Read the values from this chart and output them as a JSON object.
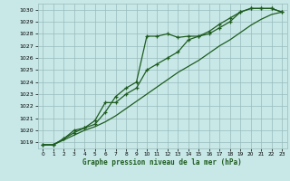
{
  "xlabel": "Graphe pression niveau de la mer (hPa)",
  "xlim": [
    -0.5,
    23.5
  ],
  "ylim": [
    1018.5,
    1030.5
  ],
  "yticks": [
    1019,
    1020,
    1021,
    1022,
    1023,
    1024,
    1025,
    1026,
    1027,
    1028,
    1029,
    1030
  ],
  "xticks": [
    0,
    1,
    2,
    3,
    4,
    5,
    6,
    7,
    8,
    9,
    10,
    11,
    12,
    13,
    14,
    15,
    16,
    17,
    18,
    19,
    20,
    21,
    22,
    23
  ],
  "bg_color": "#c8e8e8",
  "grid_color": "#99bbbb",
  "line_color": "#1e5c1e",
  "line1_x": [
    0,
    1,
    2,
    3,
    4,
    5,
    6,
    7,
    8,
    9,
    10,
    11,
    12,
    13,
    14,
    15,
    16,
    17,
    18,
    19,
    20,
    21,
    22,
    23
  ],
  "line1_y": [
    1018.8,
    1018.8,
    1019.3,
    1020.0,
    1020.2,
    1020.5,
    1021.5,
    1022.8,
    1023.5,
    1024.0,
    1027.8,
    1027.8,
    1028.0,
    1027.7,
    1027.8,
    1027.8,
    1028.0,
    1028.5,
    1029.0,
    1029.8,
    1030.1,
    1030.1,
    1030.1,
    1029.8
  ],
  "line2_x": [
    0,
    1,
    2,
    3,
    4,
    5,
    6,
    7,
    8,
    9,
    10,
    11,
    12,
    13,
    14,
    15,
    16,
    17,
    18,
    19,
    20,
    21,
    22,
    23
  ],
  "line2_y": [
    1018.8,
    1018.8,
    1019.3,
    1019.8,
    1020.2,
    1020.8,
    1022.3,
    1022.3,
    1023.0,
    1023.5,
    1025.0,
    1025.5,
    1026.0,
    1026.5,
    1027.5,
    1027.8,
    1028.2,
    1028.8,
    1029.3,
    1029.8,
    1030.1,
    1030.1,
    1030.1,
    1029.8
  ],
  "line3_x": [
    0,
    1,
    2,
    3,
    4,
    5,
    6,
    7,
    8,
    9,
    10,
    11,
    12,
    13,
    14,
    15,
    16,
    17,
    18,
    19,
    20,
    21,
    22,
    23
  ],
  "line3_y": [
    1018.8,
    1018.8,
    1019.2,
    1019.6,
    1020.0,
    1020.3,
    1020.7,
    1021.2,
    1021.8,
    1022.4,
    1023.0,
    1023.6,
    1024.2,
    1024.8,
    1025.3,
    1025.8,
    1026.4,
    1027.0,
    1027.5,
    1028.1,
    1028.7,
    1029.2,
    1029.6,
    1029.8
  ]
}
